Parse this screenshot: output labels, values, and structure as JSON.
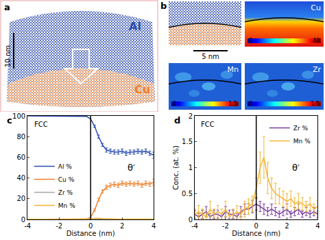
{
  "chart_data": [
    {
      "type": "line",
      "title": "c",
      "x": [
        -4,
        -3.75,
        -3.5,
        -3.25,
        -3,
        -2.75,
        -2.5,
        -2.25,
        -2,
        -1.75,
        -1.5,
        -1.25,
        -1,
        -0.75,
        -0.5,
        -0.25,
        0,
        0.25,
        0.5,
        0.75,
        1,
        1.25,
        1.5,
        1.75,
        2,
        2.25,
        2.5,
        2.75,
        3,
        3.25,
        3.5,
        3.75,
        4
      ],
      "series": [
        {
          "name": "Al %",
          "color": "#2a4db0",
          "values": [
            100,
            100,
            100,
            100,
            100,
            100,
            100,
            100,
            100,
            100,
            100,
            100,
            100,
            100,
            100,
            99.5,
            97,
            90,
            80,
            72,
            67,
            66,
            65,
            65,
            66,
            64,
            65,
            65,
            66,
            65,
            66,
            64,
            62
          ],
          "error": [
            null,
            null,
            null,
            null,
            null,
            null,
            null,
            null,
            null,
            null,
            null,
            null,
            null,
            null,
            null,
            null,
            null,
            1,
            1.5,
            1.5,
            2,
            2,
            2,
            2,
            2,
            2,
            2,
            2,
            2,
            2,
            2,
            2,
            3
          ]
        },
        {
          "name": "Cu %",
          "color": "#f07f2a",
          "values": [
            0,
            0,
            0,
            0,
            0,
            0,
            0,
            0,
            0,
            0,
            0,
            0,
            0,
            0,
            0,
            0.5,
            2,
            9,
            19,
            27,
            31,
            33,
            34,
            33,
            35,
            34,
            35,
            34,
            35,
            33,
            35,
            34,
            36
          ],
          "error": [
            null,
            null,
            null,
            null,
            null,
            null,
            null,
            null,
            null,
            null,
            null,
            null,
            null,
            null,
            null,
            null,
            null,
            1,
            1.5,
            1.5,
            2,
            2,
            2,
            2,
            2,
            2,
            2,
            2,
            2,
            2,
            2,
            2,
            3
          ]
        },
        {
          "name": "Zr %",
          "color": "#a6a6a6",
          "values": [
            0.1,
            0.05,
            0.1,
            0.15,
            0.05,
            0.1,
            0.1,
            0.05,
            0.15,
            0.1,
            0.1,
            0.05,
            0.15,
            0.2,
            0.2,
            0.25,
            0.3,
            0.25,
            0.2,
            0.15,
            0.2,
            0.15,
            0.1,
            0.15,
            0.2,
            0.1,
            0.15,
            0.2,
            0.1,
            0.15,
            0.1,
            0.15,
            0.1
          ]
        },
        {
          "name": "Mn %",
          "color": "#f5b335",
          "values": [
            0.1,
            0.15,
            0.1,
            0.05,
            0.2,
            0.1,
            0.15,
            0.1,
            0.2,
            0.05,
            0.1,
            0.15,
            0.1,
            0.2,
            0.25,
            0.3,
            0.6,
            1.0,
            1.2,
            0.8,
            0.6,
            0.5,
            0.45,
            0.4,
            0.35,
            0.4,
            0.3,
            0.35,
            0.3,
            0.25,
            0.3,
            0.2,
            0.25
          ]
        }
      ],
      "x_label": "Distance (nm)",
      "xlim": [
        -4,
        4
      ],
      "xticks": [
        -4,
        -2,
        0,
        2,
        4
      ],
      "ylim": [
        0,
        100
      ],
      "yticks": [
        0,
        20,
        40,
        60,
        80,
        100
      ],
      "annotations": [
        "FCC",
        "θ′"
      ],
      "interface_x": 0,
      "legend": "bottom left",
      "grid": false
    },
    {
      "type": "line",
      "title": "d",
      "x": [
        -4,
        -3.75,
        -3.5,
        -3.25,
        -3,
        -2.75,
        -2.5,
        -2.25,
        -2,
        -1.75,
        -1.5,
        -1.25,
        -1,
        -0.75,
        -0.5,
        -0.25,
        0,
        0.25,
        0.5,
        0.75,
        1,
        1.25,
        1.5,
        1.75,
        2,
        2.25,
        2.5,
        2.75,
        3,
        3.25,
        3.5,
        3.75,
        4
      ],
      "series": [
        {
          "name": "Zr %",
          "color": "#7a3ca0",
          "values": [
            0.1,
            0.05,
            0.1,
            0.15,
            0.05,
            0.1,
            0.1,
            0.05,
            0.15,
            0.1,
            0.1,
            0.05,
            0.15,
            0.2,
            0.2,
            0.25,
            0.3,
            0.25,
            0.2,
            0.15,
            0.2,
            0.15,
            0.1,
            0.15,
            0.2,
            0.1,
            0.15,
            0.2,
            0.1,
            0.15,
            0.1,
            0.15,
            0.1
          ],
          "error": [
            0.08,
            0.06,
            0.08,
            0.1,
            0.06,
            0.08,
            0.08,
            0.06,
            0.1,
            0.08,
            0.08,
            0.06,
            0.1,
            0.1,
            0.1,
            0.12,
            0.12,
            0.1,
            0.1,
            0.08,
            0.1,
            0.08,
            0.06,
            0.08,
            0.1,
            0.06,
            0.08,
            0.1,
            0.06,
            0.08,
            0.06,
            0.08,
            0.06
          ]
        },
        {
          "name": "Mn %",
          "color": "#f2b632",
          "values": [
            0.1,
            0.15,
            0.1,
            0.05,
            0.2,
            0.1,
            0.15,
            0.1,
            0.2,
            0.05,
            0.1,
            0.15,
            0.1,
            0.2,
            0.25,
            0.3,
            0.6,
            1.0,
            1.2,
            0.8,
            0.6,
            0.5,
            0.45,
            0.4,
            0.35,
            0.4,
            0.3,
            0.35,
            0.3,
            0.25,
            0.3,
            0.2,
            0.25
          ],
          "error": [
            0.1,
            0.12,
            0.1,
            0.08,
            0.15,
            0.1,
            0.12,
            0.1,
            0.15,
            0.08,
            0.1,
            0.12,
            0.1,
            0.15,
            0.15,
            0.15,
            0.2,
            0.3,
            0.4,
            0.3,
            0.2,
            0.2,
            0.15,
            0.15,
            0.15,
            0.15,
            0.12,
            0.15,
            0.12,
            0.1,
            0.12,
            0.1,
            0.12
          ]
        }
      ],
      "x_label": "Distance (nm)",
      "y_label": "Conc. (at. %)",
      "xlim": [
        -4,
        4
      ],
      "xticks": [
        -4,
        -2,
        0,
        2,
        4
      ],
      "ylim": [
        0,
        2
      ],
      "yticks": [
        0,
        0.5,
        1,
        1.5,
        2
      ],
      "annotations": [
        "FCC",
        "θ′"
      ],
      "interface_x": 0,
      "legend": "top right",
      "grid": false
    }
  ],
  "images": {
    "a": {
      "label": "a",
      "phases": [
        "Al",
        "Cu"
      ],
      "scale_bar": "10 nm"
    },
    "b": {
      "label": "b",
      "scale_bar": "5 nm",
      "maps": [
        {
          "title": "Cu",
          "colorbar_range": [
            0,
            40
          ],
          "colorbar_ticks": [
            0,
            40
          ]
        },
        {
          "title": "Mn",
          "colorbar_range": [
            0,
            1.5
          ],
          "colorbar_ticks": [
            0,
            1.5
          ]
        },
        {
          "title": "Zr",
          "colorbar_range": [
            0,
            1.5
          ],
          "colorbar_ticks": [
            0,
            1.5
          ]
        }
      ]
    }
  }
}
